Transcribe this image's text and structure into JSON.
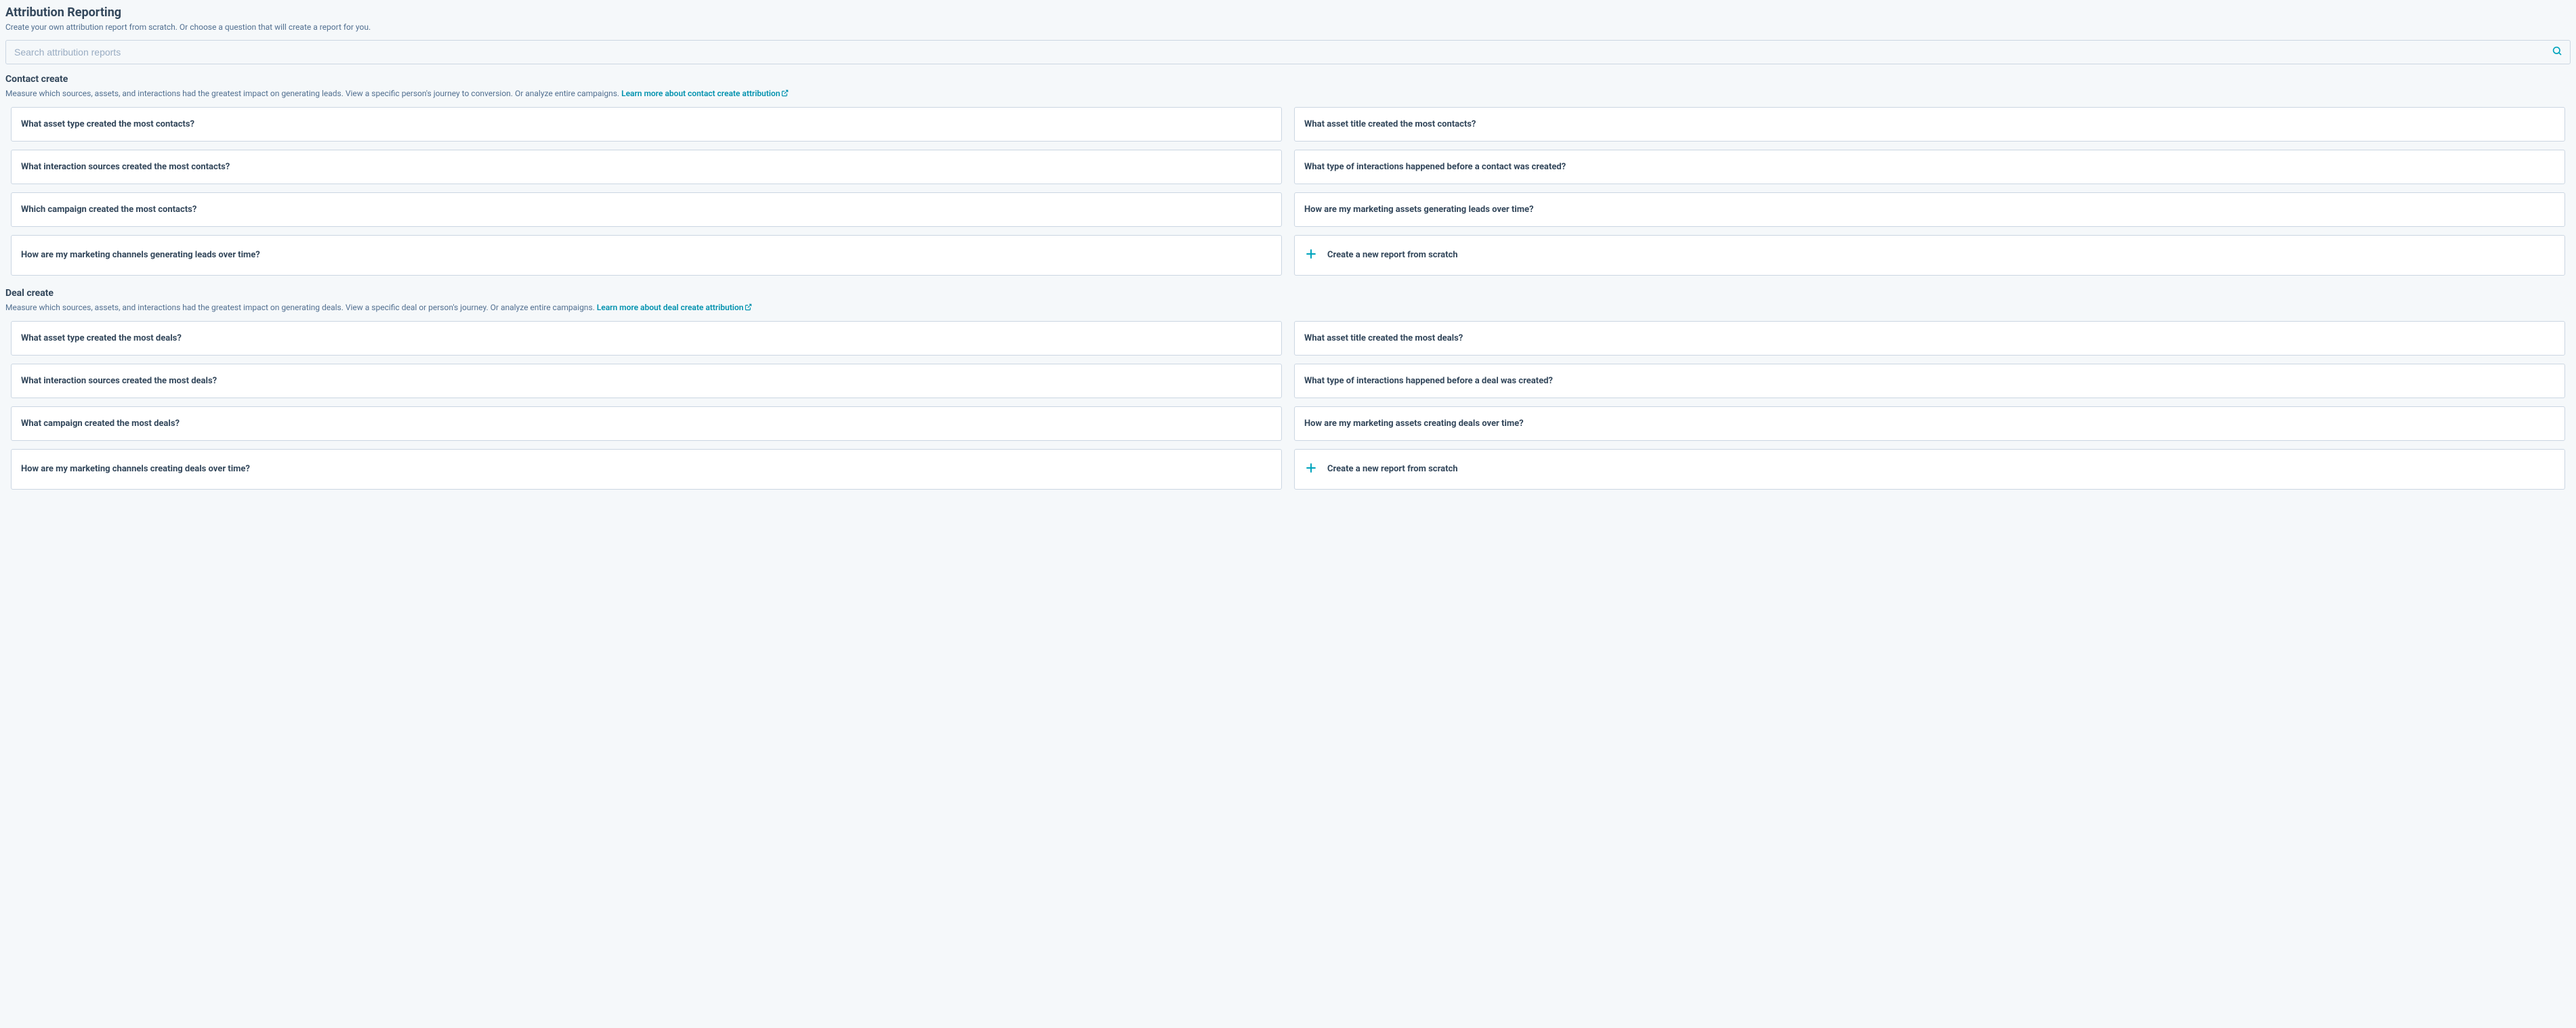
{
  "header": {
    "title": "Attribution Reporting",
    "subtitle": "Create your own attribution report from scratch. Or choose a question that will create a report for you."
  },
  "search": {
    "placeholder": "Search attribution reports"
  },
  "colors": {
    "background": "#f5f8fa",
    "card_bg": "#ffffff",
    "card_border": "#cbd6e2",
    "text_primary": "#33475b",
    "text_secondary": "#516f90",
    "link": "#0091ae",
    "accent": "#00a4bd",
    "placeholder": "#99acc2"
  },
  "sections": [
    {
      "id": "contact-create",
      "title": "Contact create",
      "description": "Measure which sources, assets, and interactions had the greatest impact on generating leads. View a specific person's journey to conversion. Or analyze entire campaigns.",
      "link_text": "Learn more about contact create attribution",
      "cards": [
        "What asset type created the most contacts?",
        "What asset title created the most contacts?",
        "What interaction sources created the most contacts?",
        "What type of interactions happened before a contact was created?",
        "Which campaign created the most contacts?",
        "How are my marketing assets generating leads over time?",
        "How are my marketing channels generating leads over time?"
      ],
      "scratch_label": "Create a new report from scratch"
    },
    {
      "id": "deal-create",
      "title": "Deal create",
      "description": "Measure which sources, assets, and interactions had the greatest impact on generating deals. View a specific deal or person's journey. Or analyze entire campaigns.",
      "link_text": "Learn more about deal create attribution",
      "cards": [
        "What asset type created the most deals?",
        "What asset title created the most deals?",
        "What interaction sources created the most deals?",
        "What type of interactions happened before a deal was created?",
        "What campaign created the most deals?",
        "How are my marketing assets creating deals over time?",
        "How are my marketing channels creating deals over time?"
      ],
      "scratch_label": "Create a new report from scratch"
    }
  ]
}
